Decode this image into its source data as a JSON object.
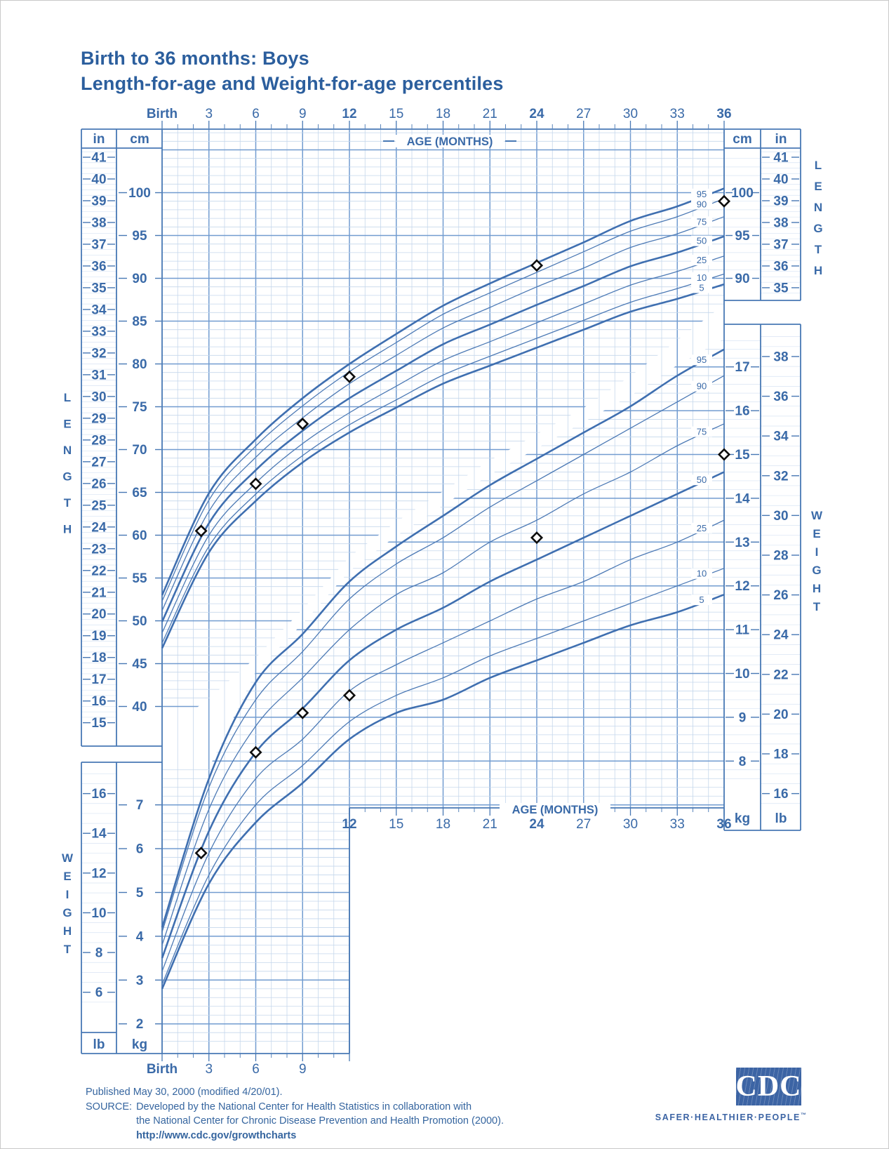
{
  "header": {
    "title_line1": "Birth to 36 months: Boys",
    "title_line2": "Length-for-age and Weight-for-age percentiles"
  },
  "footer": {
    "published": "Published May 30, 2000 (modified 4/20/01).",
    "source_label": "SOURCE:",
    "source_line1": "Developed by the National Center for Health Statistics in collaboration with",
    "source_line2": "the National Center for Chronic Disease Prevention and Health Promotion (2000).",
    "source_url": "http://www.cdc.gov/growthcharts"
  },
  "logo": {
    "text": "CDC",
    "tagline": "SAFER·HEALTHIER·PEOPLE",
    "tm": "™"
  },
  "colors": {
    "ink": "#3a6aa8",
    "title_ink": "#2b5e9d",
    "curve": "#3f6fb0",
    "curve_thin": "#4d7ab5",
    "grid_light": "#c5d7ec",
    "grid_faint": "#d8e4f3",
    "grid_heavy": "#729cd0",
    "border": "#4878b4",
    "marker": "#0d0d0d",
    "marker_fill": "#ffffff"
  },
  "chart_data": {
    "type": "line",
    "title": "Birth to 36 months: Boys — Length-for-age and Weight-for-age percentiles",
    "age_axis": {
      "label": "AGE (MONTHS)",
      "top_ticks": [
        "Birth",
        "3",
        "6",
        "9",
        "12",
        "15",
        "18",
        "21",
        "24",
        "27",
        "30",
        "33",
        "36"
      ],
      "bottom_right_ticks": [
        "12",
        "15",
        "18",
        "21",
        "24",
        "27",
        "30",
        "33",
        "36"
      ],
      "bottom_left_ticks": [
        "Birth",
        "3",
        "6",
        "9"
      ],
      "emphasized": [
        "Birth",
        "12",
        "24",
        "36"
      ],
      "range_months": [
        0,
        36
      ]
    },
    "length_axis": {
      "side_label": "LENGTH",
      "cm_header": "cm",
      "in_header": "in",
      "cm_ticks_left": [
        100,
        95,
        90,
        85,
        80,
        75,
        70,
        65,
        60,
        55,
        50,
        45,
        40
      ],
      "in_ticks_left": [
        41,
        40,
        39,
        38,
        37,
        36,
        35,
        34,
        33,
        32,
        31,
        30,
        29,
        28,
        27,
        26,
        25,
        24,
        23,
        22,
        21,
        20,
        19,
        18,
        17,
        16,
        15
      ],
      "cm_ticks_right": [
        100,
        95,
        90
      ],
      "in_ticks_right": [
        41,
        40,
        39,
        38,
        37,
        36,
        35
      ]
    },
    "weight_axis": {
      "side_label": "WEIGHT",
      "kg_header": "kg",
      "lb_header": "lb",
      "kg_ticks_right": [
        17,
        16,
        15,
        14,
        13,
        12,
        11,
        10,
        9,
        8
      ],
      "lb_ticks_right": [
        38,
        36,
        34,
        32,
        30,
        28,
        26,
        24,
        22,
        20,
        18,
        16
      ],
      "kg_ticks_left": [
        7,
        6,
        5,
        4,
        3,
        2
      ],
      "lb_ticks_left": [
        16,
        14,
        12,
        10,
        8,
        6
      ]
    },
    "percentiles": [
      "95",
      "90",
      "75",
      "50",
      "25",
      "10",
      "5"
    ],
    "heavy_percentiles": [
      "95",
      "50",
      "5"
    ],
    "months": [
      0,
      3,
      6,
      9,
      12,
      15,
      18,
      21,
      24,
      27,
      30,
      33,
      36
    ],
    "length_for_age_cm": {
      "5": [
        46.8,
        58.0,
        64.0,
        68.5,
        72.0,
        74.9,
        77.7,
        79.8,
        81.9,
        84.0,
        86.1,
        87.6,
        89.3
      ],
      "10": [
        47.4,
        58.7,
        64.8,
        69.3,
        72.9,
        75.8,
        78.7,
        80.9,
        83.0,
        85.1,
        87.2,
        88.8,
        90.5
      ],
      "25": [
        48.6,
        60.0,
        66.1,
        70.7,
        74.3,
        77.4,
        80.4,
        82.6,
        84.8,
        87.0,
        89.2,
        90.8,
        92.6
      ],
      "50": [
        49.9,
        61.4,
        67.6,
        72.2,
        76.0,
        79.2,
        82.3,
        84.6,
        86.9,
        89.1,
        91.4,
        93.0,
        94.9
      ],
      "75": [
        51.2,
        62.8,
        69.1,
        73.7,
        77.7,
        81.0,
        84.2,
        86.6,
        89.0,
        91.2,
        93.6,
        95.2,
        97.2
      ],
      "90": [
        52.3,
        64.1,
        70.4,
        75.1,
        79.1,
        82.5,
        85.8,
        88.3,
        90.7,
        93.1,
        95.5,
        97.2,
        99.3
      ],
      "95": [
        53.0,
        64.9,
        71.2,
        76.0,
        80.0,
        83.5,
        86.8,
        89.4,
        91.8,
        94.2,
        96.7,
        98.4,
        100.5
      ]
    },
    "weight_for_age_kg": {
      "5": [
        2.8,
        5.2,
        6.6,
        7.5,
        8.5,
        9.1,
        9.4,
        9.9,
        10.3,
        10.7,
        11.1,
        11.4,
        11.8
      ],
      "10": [
        2.9,
        5.4,
        7.0,
        7.9,
        8.9,
        9.5,
        9.9,
        10.4,
        10.8,
        11.2,
        11.6,
        12.0,
        12.4
      ],
      "25": [
        3.2,
        5.9,
        7.6,
        8.5,
        9.6,
        10.2,
        10.7,
        11.2,
        11.7,
        12.1,
        12.6,
        13.0,
        13.5
      ],
      "50": [
        3.5,
        6.4,
        8.2,
        9.2,
        10.3,
        11.0,
        11.5,
        12.1,
        12.6,
        13.1,
        13.6,
        14.1,
        14.6
      ],
      "75": [
        3.8,
        6.9,
        8.8,
        9.9,
        11.0,
        11.8,
        12.3,
        13.0,
        13.5,
        14.1,
        14.6,
        15.2,
        15.7
      ],
      "90": [
        4.1,
        7.4,
        9.4,
        10.5,
        11.7,
        12.5,
        13.1,
        13.8,
        14.4,
        15.0,
        15.6,
        16.2,
        16.8
      ],
      "95": [
        4.2,
        7.6,
        9.8,
        10.9,
        12.1,
        12.9,
        13.6,
        14.3,
        14.9,
        15.5,
        16.1,
        16.8,
        17.4
      ]
    },
    "patient": {
      "marker": "diamond",
      "length": {
        "months": [
          2.5,
          6,
          9,
          12,
          24,
          36
        ],
        "cm": [
          60.5,
          66,
          73,
          78.5,
          91.5,
          99
        ]
      },
      "weight": {
        "months": [
          2.5,
          6,
          9,
          12,
          24,
          36
        ],
        "kg": [
          5.9,
          8.2,
          9.1,
          9.5,
          13.1,
          15
        ]
      }
    }
  }
}
